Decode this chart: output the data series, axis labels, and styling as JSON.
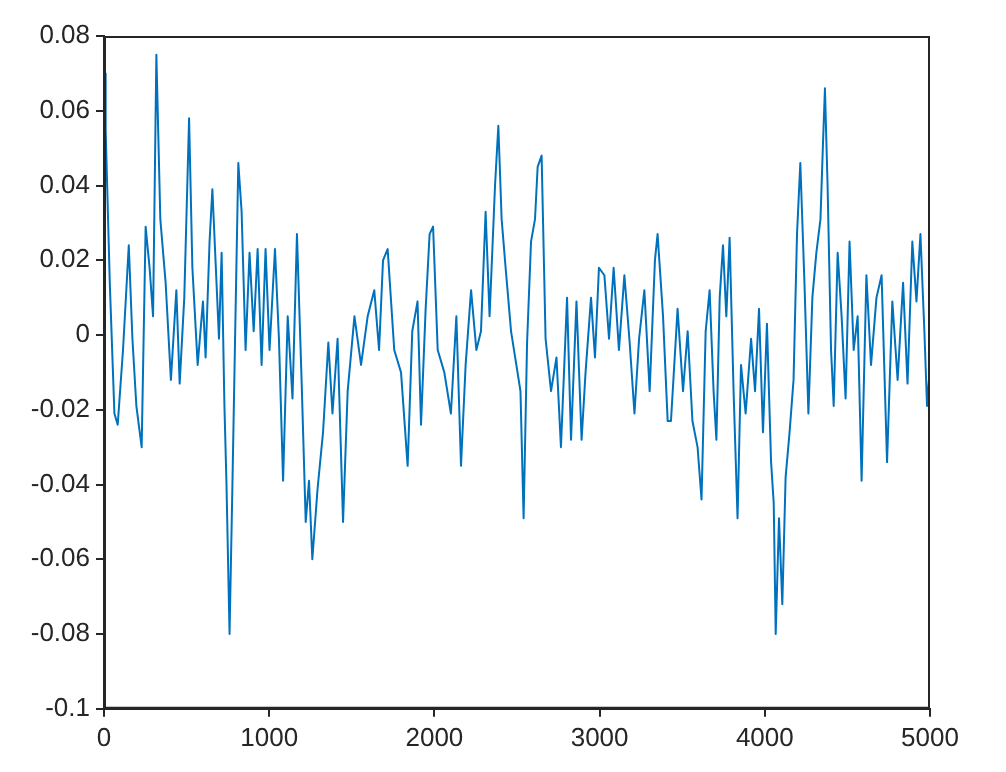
{
  "chart_data": {
    "type": "line",
    "xlim": [
      0,
      5000
    ],
    "ylim": [
      -0.1,
      0.08
    ],
    "xticks": [
      0,
      1000,
      2000,
      3000,
      4000,
      5000
    ],
    "yticks": [
      -0.1,
      -0.08,
      -0.06,
      -0.04,
      -0.02,
      0,
      0.02,
      0.04,
      0.06,
      0.08
    ],
    "grid": false,
    "legend": false,
    "marker": "none",
    "line_style": "solid",
    "series": [
      {
        "color": "#0072bd",
        "x": [
          0,
          10,
          35,
          63,
          83,
          115,
          150,
          172,
          196,
          228,
          252,
          276,
          297,
          317,
          341,
          373,
          405,
          438,
          458,
          486,
          515,
          535,
          567,
          599,
          615,
          639,
          656,
          672,
          696,
          712,
          729,
          741,
          760,
          777,
          793,
          813,
          833,
          857,
          881,
          906,
          930,
          954,
          978,
          1002,
          1035,
          1059,
          1084,
          1112,
          1141,
          1168,
          1196,
          1221,
          1241,
          1261,
          1293,
          1326,
          1358,
          1383,
          1414,
          1447,
          1475,
          1516,
          1556,
          1596,
          1636,
          1665,
          1689,
          1717,
          1757,
          1798,
          1838,
          1866,
          1898,
          1919,
          1947,
          1971,
          1992,
          2020,
          2060,
          2100,
          2133,
          2161,
          2189,
          2222,
          2254,
          2282,
          2310,
          2334,
          2367,
          2387,
          2407,
          2431,
          2464,
          2496,
          2521,
          2540,
          2561,
          2585,
          2609,
          2625,
          2649,
          2673,
          2706,
          2739,
          2766,
          2803,
          2827,
          2860,
          2891,
          2915,
          2948,
          2972,
          2996,
          3029,
          3057,
          3085,
          3117,
          3150,
          3182,
          3211,
          3239,
          3271,
          3303,
          3335,
          3351,
          3384,
          3412,
          3432,
          3472,
          3505,
          3533,
          3562,
          3593,
          3617,
          3642,
          3666,
          3690,
          3707,
          3727,
          3747,
          3767,
          3787,
          3811,
          3835,
          3856,
          3884,
          3917,
          3941,
          3965,
          3989,
          4013,
          4038,
          4054,
          4066,
          4086,
          4106,
          4126,
          4150,
          4174,
          4195,
          4215,
          4240,
          4264,
          4288,
          4312,
          4337,
          4352,
          4364,
          4380,
          4401,
          4417,
          4441,
          4465,
          4489,
          4513,
          4538,
          4562,
          4586,
          4615,
          4643,
          4676,
          4707,
          4740,
          4772,
          4804,
          4837,
          4864,
          4893,
          4918,
          4942,
          4966,
          4982,
          5000
        ],
        "values": [
          0.07,
          0.055,
          0.014,
          -0.021,
          -0.024,
          -0.004,
          0.024,
          -0.001,
          -0.019,
          -0.03,
          0.029,
          0.018,
          0.005,
          0.075,
          0.031,
          0.014,
          -0.012,
          0.012,
          -0.013,
          0.01,
          0.058,
          0.018,
          -0.008,
          0.009,
          -0.006,
          0.025,
          0.039,
          0.023,
          -0.001,
          0.022,
          -0.019,
          -0.039,
          -0.08,
          -0.041,
          -0.002,
          0.046,
          0.033,
          -0.004,
          0.022,
          0.001,
          0.023,
          -0.008,
          0.023,
          -0.004,
          0.023,
          -0.001,
          -0.039,
          0.005,
          -0.017,
          0.027,
          -0.012,
          -0.05,
          -0.039,
          -0.06,
          -0.041,
          -0.026,
          -0.002,
          -0.021,
          -0.001,
          -0.05,
          -0.015,
          0.005,
          -0.008,
          0.005,
          0.012,
          -0.004,
          0.02,
          0.023,
          -0.004,
          -0.01,
          -0.035,
          0.001,
          0.009,
          -0.024,
          0.007,
          0.027,
          0.029,
          -0.004,
          -0.01,
          -0.021,
          0.005,
          -0.035,
          -0.008,
          0.012,
          -0.004,
          0.001,
          0.033,
          0.005,
          0.04,
          0.056,
          0.031,
          0.018,
          0.001,
          -0.008,
          -0.015,
          -0.049,
          -0.002,
          0.025,
          0.031,
          0.045,
          0.048,
          -0.001,
          -0.015,
          -0.006,
          -0.03,
          0.01,
          -0.028,
          0.009,
          -0.028,
          -0.01,
          0.01,
          -0.006,
          0.018,
          0.016,
          -0.001,
          0.018,
          -0.004,
          0.016,
          -0.002,
          -0.021,
          -0.001,
          0.012,
          -0.015,
          0.02,
          0.027,
          0.005,
          -0.023,
          -0.023,
          0.007,
          -0.015,
          0.001,
          -0.023,
          -0.03,
          -0.044,
          0.001,
          0.012,
          -0.015,
          -0.028,
          0.01,
          0.024,
          0.005,
          0.026,
          -0.015,
          -0.049,
          -0.008,
          -0.021,
          -0.001,
          -0.015,
          0.007,
          -0.026,
          0.003,
          -0.034,
          -0.045,
          -0.08,
          -0.049,
          -0.072,
          -0.038,
          -0.026,
          -0.012,
          0.027,
          0.046,
          0.014,
          -0.021,
          0.01,
          0.022,
          0.031,
          0.051,
          0.066,
          0.04,
          -0.004,
          -0.019,
          0.022,
          0.005,
          -0.017,
          0.025,
          -0.004,
          0.005,
          -0.039,
          0.016,
          -0.008,
          0.01,
          0.016,
          -0.034,
          0.009,
          -0.012,
          0.014,
          -0.013,
          0.025,
          0.009,
          0.027,
          0.001,
          -0.019,
          -0.008
        ]
      }
    ]
  }
}
